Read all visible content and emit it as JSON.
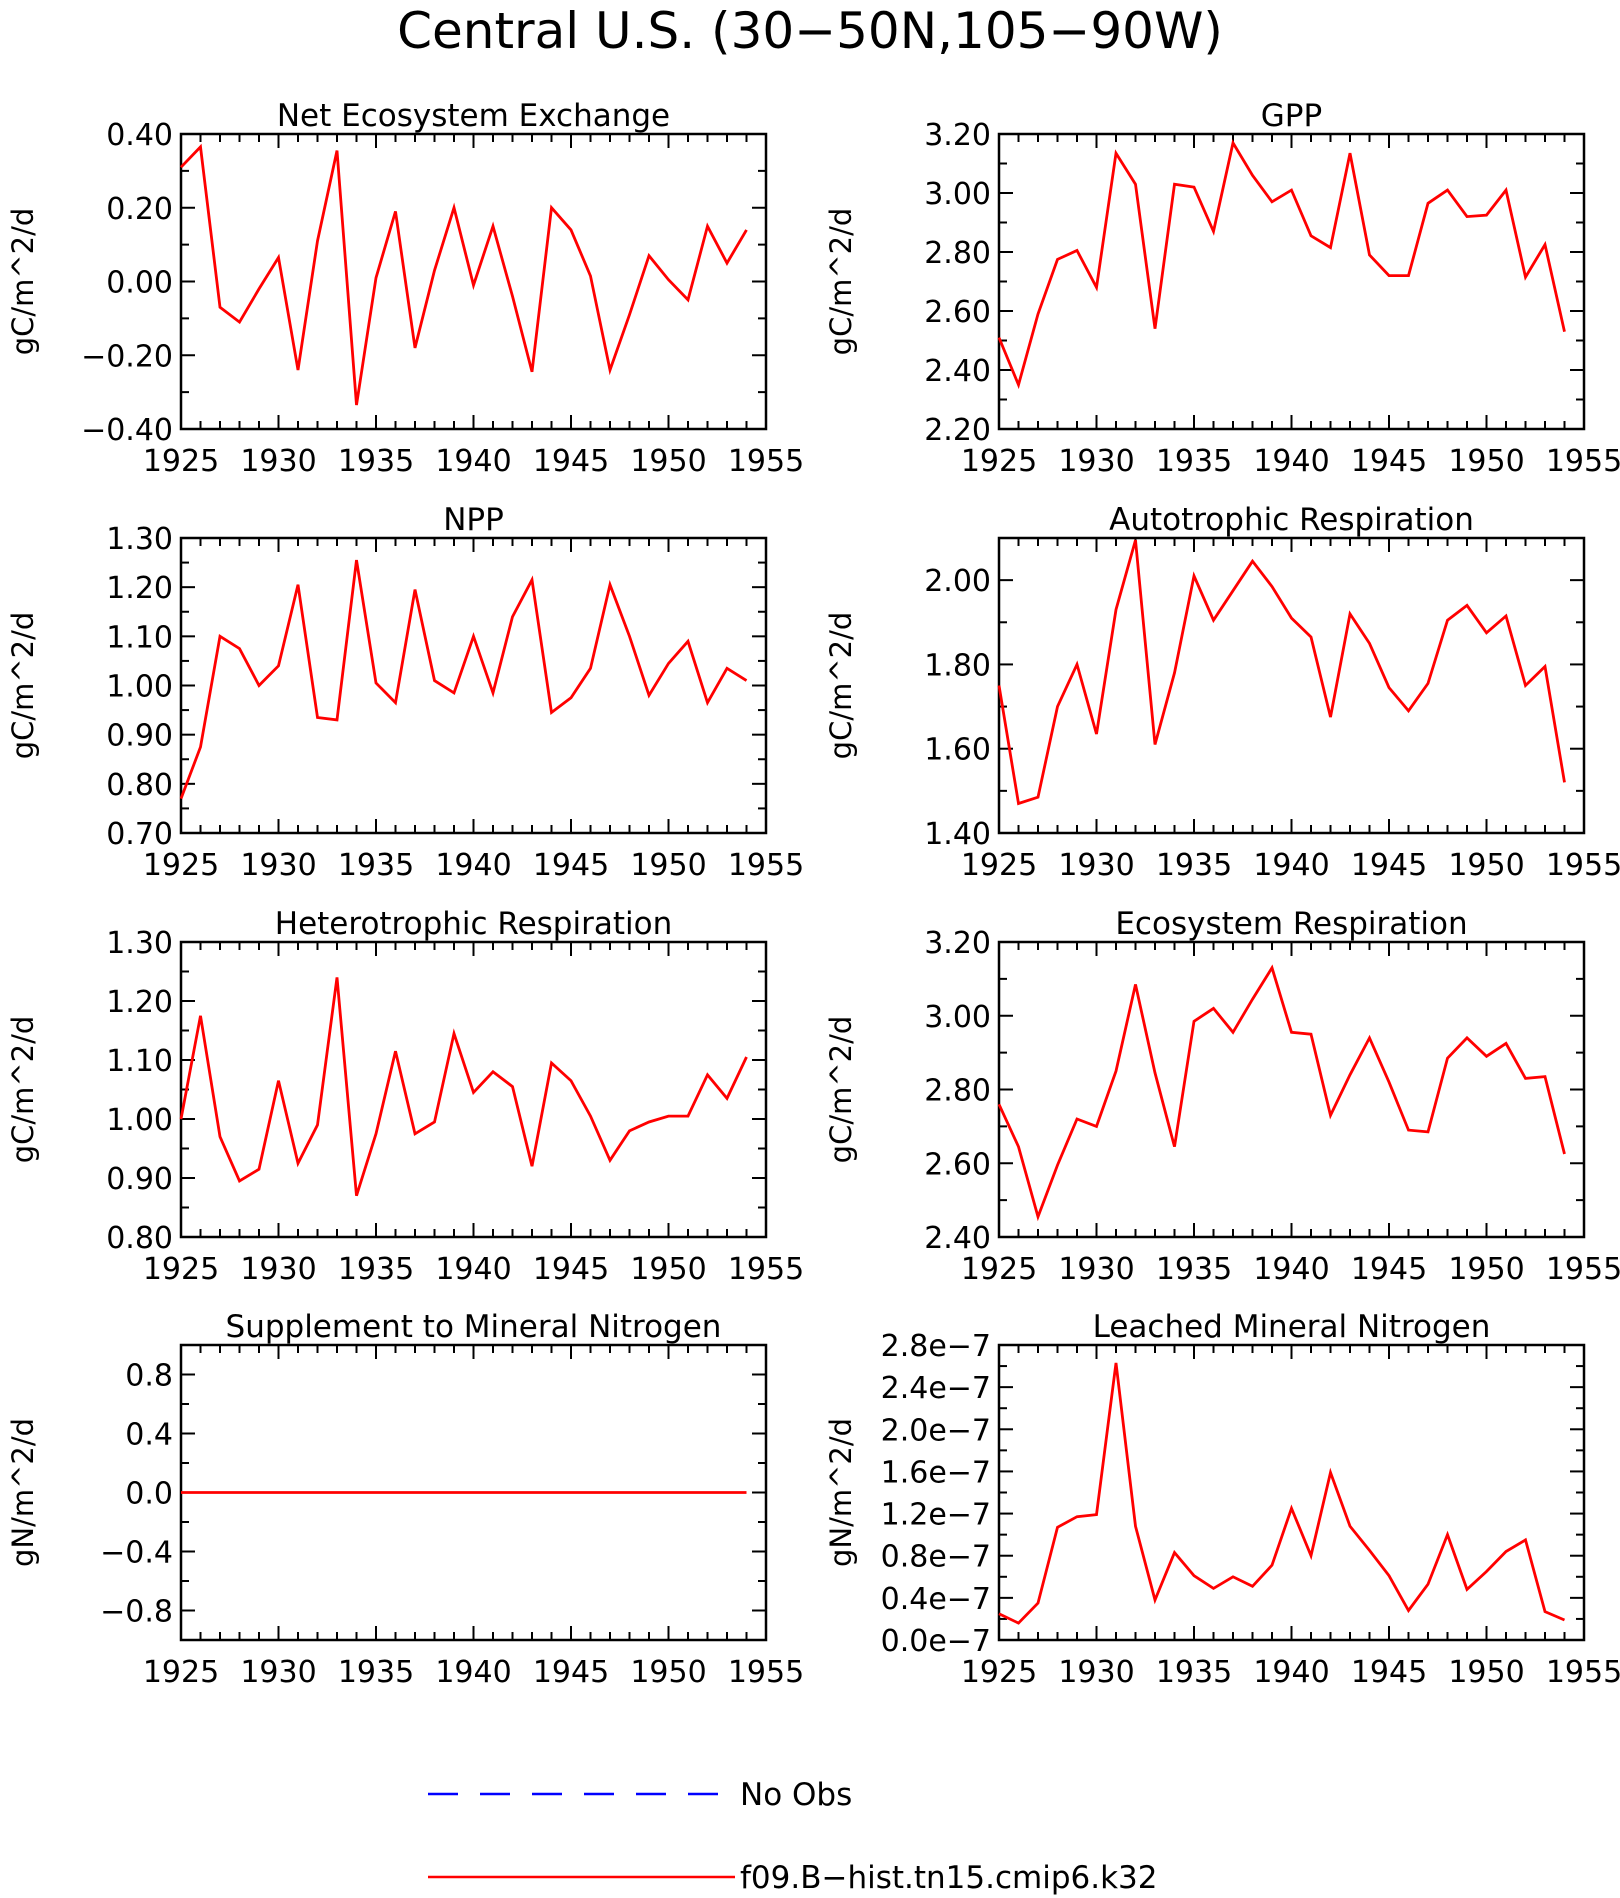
{
  "figure": {
    "title": "Central U.S. (30−50N,105−90W)",
    "legend": [
      {
        "label": "No Obs",
        "color": "#0000ff",
        "style": "dashed"
      },
      {
        "label": "f09.B−hist.tn15.cmip6.k32",
        "color": "#ff0000",
        "style": "solid"
      }
    ]
  },
  "chart_data": [
    {
      "type": "line",
      "title": "Net Ecosystem Exchange",
      "ylabel": "gC/m^2/d",
      "xlim": [
        1925,
        1955
      ],
      "ylim": [
        -0.4,
        0.4
      ],
      "xticks": [
        1925,
        1930,
        1935,
        1940,
        1945,
        1950,
        1955
      ],
      "xtick_labels": [
        "1925",
        "1930",
        "1935",
        "1940",
        "1945",
        "1950",
        "1955"
      ],
      "yticks": [
        -0.4,
        -0.2,
        0.0,
        0.2,
        0.4
      ],
      "ytick_labels": [
        "−0.40",
        "−0.20",
        "0.00",
        "0.20",
        "0.40"
      ],
      "series": [
        {
          "color": "#ff0000",
          "x": [
            1925,
            1926,
            1927,
            1928,
            1929,
            1930,
            1931,
            1932,
            1933,
            1934,
            1935,
            1936,
            1937,
            1938,
            1939,
            1940,
            1941,
            1942,
            1943,
            1944,
            1945,
            1946,
            1947,
            1948,
            1949,
            1950,
            1951,
            1952,
            1953,
            1954
          ],
          "values": [
            0.31,
            0.365,
            -0.07,
            -0.11,
            -0.02,
            0.065,
            -0.24,
            0.11,
            0.355,
            -0.335,
            0.01,
            0.19,
            -0.18,
            0.03,
            0.2,
            -0.01,
            0.15,
            -0.04,
            -0.245,
            0.2,
            0.14,
            0.015,
            -0.24,
            -0.09,
            0.07,
            0.005,
            -0.05,
            0.15,
            0.05,
            0.14
          ]
        }
      ]
    },
    {
      "type": "line",
      "title": "GPP",
      "ylabel": "gC/m^2/d",
      "xlim": [
        1925,
        1955
      ],
      "ylim": [
        2.2,
        3.2
      ],
      "xticks": [
        1925,
        1930,
        1935,
        1940,
        1945,
        1950,
        1955
      ],
      "xtick_labels": [
        "1925",
        "1930",
        "1935",
        "1940",
        "1945",
        "1950",
        "1955"
      ],
      "yticks": [
        2.2,
        2.4,
        2.6,
        2.8,
        3.0,
        3.2
      ],
      "ytick_labels": [
        "2.20",
        "2.40",
        "2.60",
        "2.80",
        "3.00",
        "3.20"
      ],
      "series": [
        {
          "color": "#ff0000",
          "x": [
            1925,
            1926,
            1927,
            1928,
            1929,
            1930,
            1931,
            1932,
            1933,
            1934,
            1935,
            1936,
            1937,
            1938,
            1939,
            1940,
            1941,
            1942,
            1943,
            1944,
            1945,
            1946,
            1947,
            1948,
            1949,
            1950,
            1951,
            1952,
            1953,
            1954
          ],
          "values": [
            2.51,
            2.35,
            2.59,
            2.775,
            2.805,
            2.68,
            3.135,
            3.03,
            2.54,
            3.03,
            3.02,
            2.87,
            3.17,
            3.06,
            2.97,
            3.01,
            2.855,
            2.815,
            3.135,
            2.79,
            2.72,
            2.72,
            2.965,
            3.01,
            2.92,
            2.925,
            3.01,
            2.715,
            2.825,
            2.53
          ]
        }
      ]
    },
    {
      "type": "line",
      "title": "NPP",
      "ylabel": "gC/m^2/d",
      "xlim": [
        1925,
        1955
      ],
      "ylim": [
        0.7,
        1.3
      ],
      "xticks": [
        1925,
        1930,
        1935,
        1940,
        1945,
        1950,
        1955
      ],
      "xtick_labels": [
        "1925",
        "1930",
        "1935",
        "1940",
        "1945",
        "1950",
        "1955"
      ],
      "yticks": [
        0.7,
        0.8,
        0.9,
        1.0,
        1.1,
        1.2,
        1.3
      ],
      "ytick_labels": [
        "0.70",
        "0.80",
        "0.90",
        "1.00",
        "1.10",
        "1.20",
        "1.30"
      ],
      "series": [
        {
          "color": "#ff0000",
          "x": [
            1925,
            1926,
            1927,
            1928,
            1929,
            1930,
            1931,
            1932,
            1933,
            1934,
            1935,
            1936,
            1937,
            1938,
            1939,
            1940,
            1941,
            1942,
            1943,
            1944,
            1945,
            1946,
            1947,
            1948,
            1949,
            1950,
            1951,
            1952,
            1953,
            1954
          ],
          "values": [
            0.77,
            0.875,
            1.1,
            1.075,
            1.0,
            1.04,
            1.205,
            0.935,
            0.93,
            1.255,
            1.005,
            0.965,
            1.195,
            1.01,
            0.985,
            1.1,
            0.985,
            1.14,
            1.215,
            0.945,
            0.975,
            1.035,
            1.205,
            1.1,
            0.98,
            1.045,
            1.09,
            0.965,
            1.035,
            1.01
          ]
        }
      ]
    },
    {
      "type": "line",
      "title": "Autotrophic Respiration",
      "ylabel": "gC/m^2/d",
      "xlim": [
        1925,
        1955
      ],
      "ylim": [
        1.4,
        2.1
      ],
      "xticks": [
        1925,
        1930,
        1935,
        1940,
        1945,
        1950,
        1955
      ],
      "xtick_labels": [
        "1925",
        "1930",
        "1935",
        "1940",
        "1945",
        "1950",
        "1955"
      ],
      "yticks": [
        1.4,
        1.6,
        1.8,
        2.0
      ],
      "ytick_labels": [
        "1.40",
        "1.60",
        "1.80",
        "2.00"
      ],
      "series": [
        {
          "color": "#ff0000",
          "x": [
            1925,
            1926,
            1927,
            1928,
            1929,
            1930,
            1931,
            1932,
            1933,
            1934,
            1935,
            1936,
            1937,
            1938,
            1939,
            1940,
            1941,
            1942,
            1943,
            1944,
            1945,
            1946,
            1947,
            1948,
            1949,
            1950,
            1951,
            1952,
            1953,
            1954
          ],
          "values": [
            1.75,
            1.47,
            1.485,
            1.7,
            1.8,
            1.635,
            1.93,
            2.095,
            1.61,
            1.78,
            2.01,
            1.905,
            1.975,
            2.045,
            1.985,
            1.91,
            1.865,
            1.675,
            1.92,
            1.85,
            1.745,
            1.69,
            1.755,
            1.905,
            1.94,
            1.875,
            1.915,
            1.75,
            1.795,
            1.52
          ]
        }
      ]
    },
    {
      "type": "line",
      "title": "Heterotrophic Respiration",
      "ylabel": "gC/m^2/d",
      "xlim": [
        1925,
        1955
      ],
      "ylim": [
        0.8,
        1.3
      ],
      "xticks": [
        1925,
        1930,
        1935,
        1940,
        1945,
        1950,
        1955
      ],
      "xtick_labels": [
        "1925",
        "1930",
        "1935",
        "1940",
        "1945",
        "1950",
        "1955"
      ],
      "yticks": [
        0.8,
        0.9,
        1.0,
        1.1,
        1.2,
        1.3
      ],
      "ytick_labels": [
        "0.80",
        "0.90",
        "1.00",
        "1.10",
        "1.20",
        "1.30"
      ],
      "series": [
        {
          "color": "#ff0000",
          "x": [
            1925,
            1926,
            1927,
            1928,
            1929,
            1930,
            1931,
            1932,
            1933,
            1934,
            1935,
            1936,
            1937,
            1938,
            1939,
            1940,
            1941,
            1942,
            1943,
            1944,
            1945,
            1946,
            1947,
            1948,
            1949,
            1950,
            1951,
            1952,
            1953,
            1954
          ],
          "values": [
            1.0,
            1.175,
            0.97,
            0.895,
            0.915,
            1.065,
            0.925,
            0.99,
            1.24,
            0.87,
            0.975,
            1.115,
            0.975,
            0.995,
            1.145,
            1.045,
            1.08,
            1.055,
            0.92,
            1.095,
            1.065,
            1.005,
            0.93,
            0.98,
            0.995,
            1.005,
            1.005,
            1.075,
            1.035,
            1.105
          ]
        }
      ]
    },
    {
      "type": "line",
      "title": "Ecosystem Respiration",
      "ylabel": "gC/m^2/d",
      "xlim": [
        1925,
        1955
      ],
      "ylim": [
        2.4,
        3.2
      ],
      "xticks": [
        1925,
        1930,
        1935,
        1940,
        1945,
        1950,
        1955
      ],
      "xtick_labels": [
        "1925",
        "1930",
        "1935",
        "1940",
        "1945",
        "1950",
        "1955"
      ],
      "yticks": [
        2.4,
        2.6,
        2.8,
        3.0,
        3.2
      ],
      "ytick_labels": [
        "2.40",
        "2.60",
        "2.80",
        "3.00",
        "3.20"
      ],
      "series": [
        {
          "color": "#ff0000",
          "x": [
            1925,
            1926,
            1927,
            1928,
            1929,
            1930,
            1931,
            1932,
            1933,
            1934,
            1935,
            1936,
            1937,
            1938,
            1939,
            1940,
            1941,
            1942,
            1943,
            1944,
            1945,
            1946,
            1947,
            1948,
            1949,
            1950,
            1951,
            1952,
            1953,
            1954
          ],
          "values": [
            2.76,
            2.645,
            2.455,
            2.595,
            2.72,
            2.7,
            2.85,
            3.085,
            2.845,
            2.645,
            2.985,
            3.02,
            2.955,
            3.045,
            3.13,
            2.955,
            2.95,
            2.73,
            2.84,
            2.94,
            2.82,
            2.69,
            2.685,
            2.885,
            2.94,
            2.89,
            2.925,
            2.83,
            2.835,
            2.625
          ]
        }
      ]
    },
    {
      "type": "line",
      "title": "Supplement to Mineral Nitrogen",
      "ylabel": "gN/m^2/d",
      "xlim": [
        1925,
        1955
      ],
      "ylim": [
        -1.0,
        1.0
      ],
      "xticks": [
        1925,
        1930,
        1935,
        1940,
        1945,
        1950,
        1955
      ],
      "xtick_labels": [
        "1925",
        "1930",
        "1935",
        "1940",
        "1945",
        "1950",
        "1955"
      ],
      "yticks": [
        -0.8,
        -0.4,
        0.0,
        0.4,
        0.8
      ],
      "ytick_labels": [
        "−0.8",
        "−0.4",
        "0.0",
        "0.4",
        "0.8"
      ],
      "series": [
        {
          "color": "#ff0000",
          "x": [
            1925,
            1926,
            1927,
            1928,
            1929,
            1930,
            1931,
            1932,
            1933,
            1934,
            1935,
            1936,
            1937,
            1938,
            1939,
            1940,
            1941,
            1942,
            1943,
            1944,
            1945,
            1946,
            1947,
            1948,
            1949,
            1950,
            1951,
            1952,
            1953,
            1954
          ],
          "values": [
            0,
            0,
            0,
            0,
            0,
            0,
            0,
            0,
            0,
            0,
            0,
            0,
            0,
            0,
            0,
            0,
            0,
            0,
            0,
            0,
            0,
            0,
            0,
            0,
            0,
            0,
            0,
            0,
            0,
            0
          ]
        }
      ]
    },
    {
      "type": "line",
      "title": "Leached Mineral Nitrogen",
      "ylabel": "gN/m^2/d",
      "xlim": [
        1925,
        1955
      ],
      "ylim": [
        0.0,
        2.8e-07
      ],
      "xticks": [
        1925,
        1930,
        1935,
        1940,
        1945,
        1950,
        1955
      ],
      "xtick_labels": [
        "1925",
        "1930",
        "1935",
        "1940",
        "1945",
        "1950",
        "1955"
      ],
      "yticks": [
        0.0,
        4e-08,
        8e-08,
        1.2e-07,
        1.6e-07,
        2e-07,
        2.4e-07,
        2.8e-07
      ],
      "ytick_labels": [
        "0.0e−7",
        "0.4e−7",
        "0.8e−7",
        "1.2e−7",
        "1.6e−7",
        "2.0e−7",
        "2.4e−7",
        "2.8e−7"
      ],
      "series": [
        {
          "color": "#ff0000",
          "x": [
            1925,
            1926,
            1927,
            1928,
            1929,
            1930,
            1931,
            1932,
            1933,
            1934,
            1935,
            1936,
            1937,
            1938,
            1939,
            1940,
            1941,
            1942,
            1943,
            1944,
            1945,
            1946,
            1947,
            1948,
            1949,
            1950,
            1951,
            1952,
            1953,
            1954
          ],
          "values": [
            2.5e-08,
            1.6e-08,
            3.5e-08,
            1.07e-07,
            1.17e-07,
            1.19e-07,
            2.63e-07,
            1.08e-07,
            3.8e-08,
            8.3e-08,
            6.1e-08,
            4.9e-08,
            6e-08,
            5.1e-08,
            7.1e-08,
            1.25e-07,
            8e-08,
            1.59e-07,
            1.08e-07,
            8.5e-08,
            6.1e-08,
            2.8e-08,
            5.3e-08,
            1e-07,
            4.8e-08,
            6.5e-08,
            8.4e-08,
            9.5e-08,
            2.7e-08,
            1.9e-08
          ]
        }
      ]
    }
  ]
}
